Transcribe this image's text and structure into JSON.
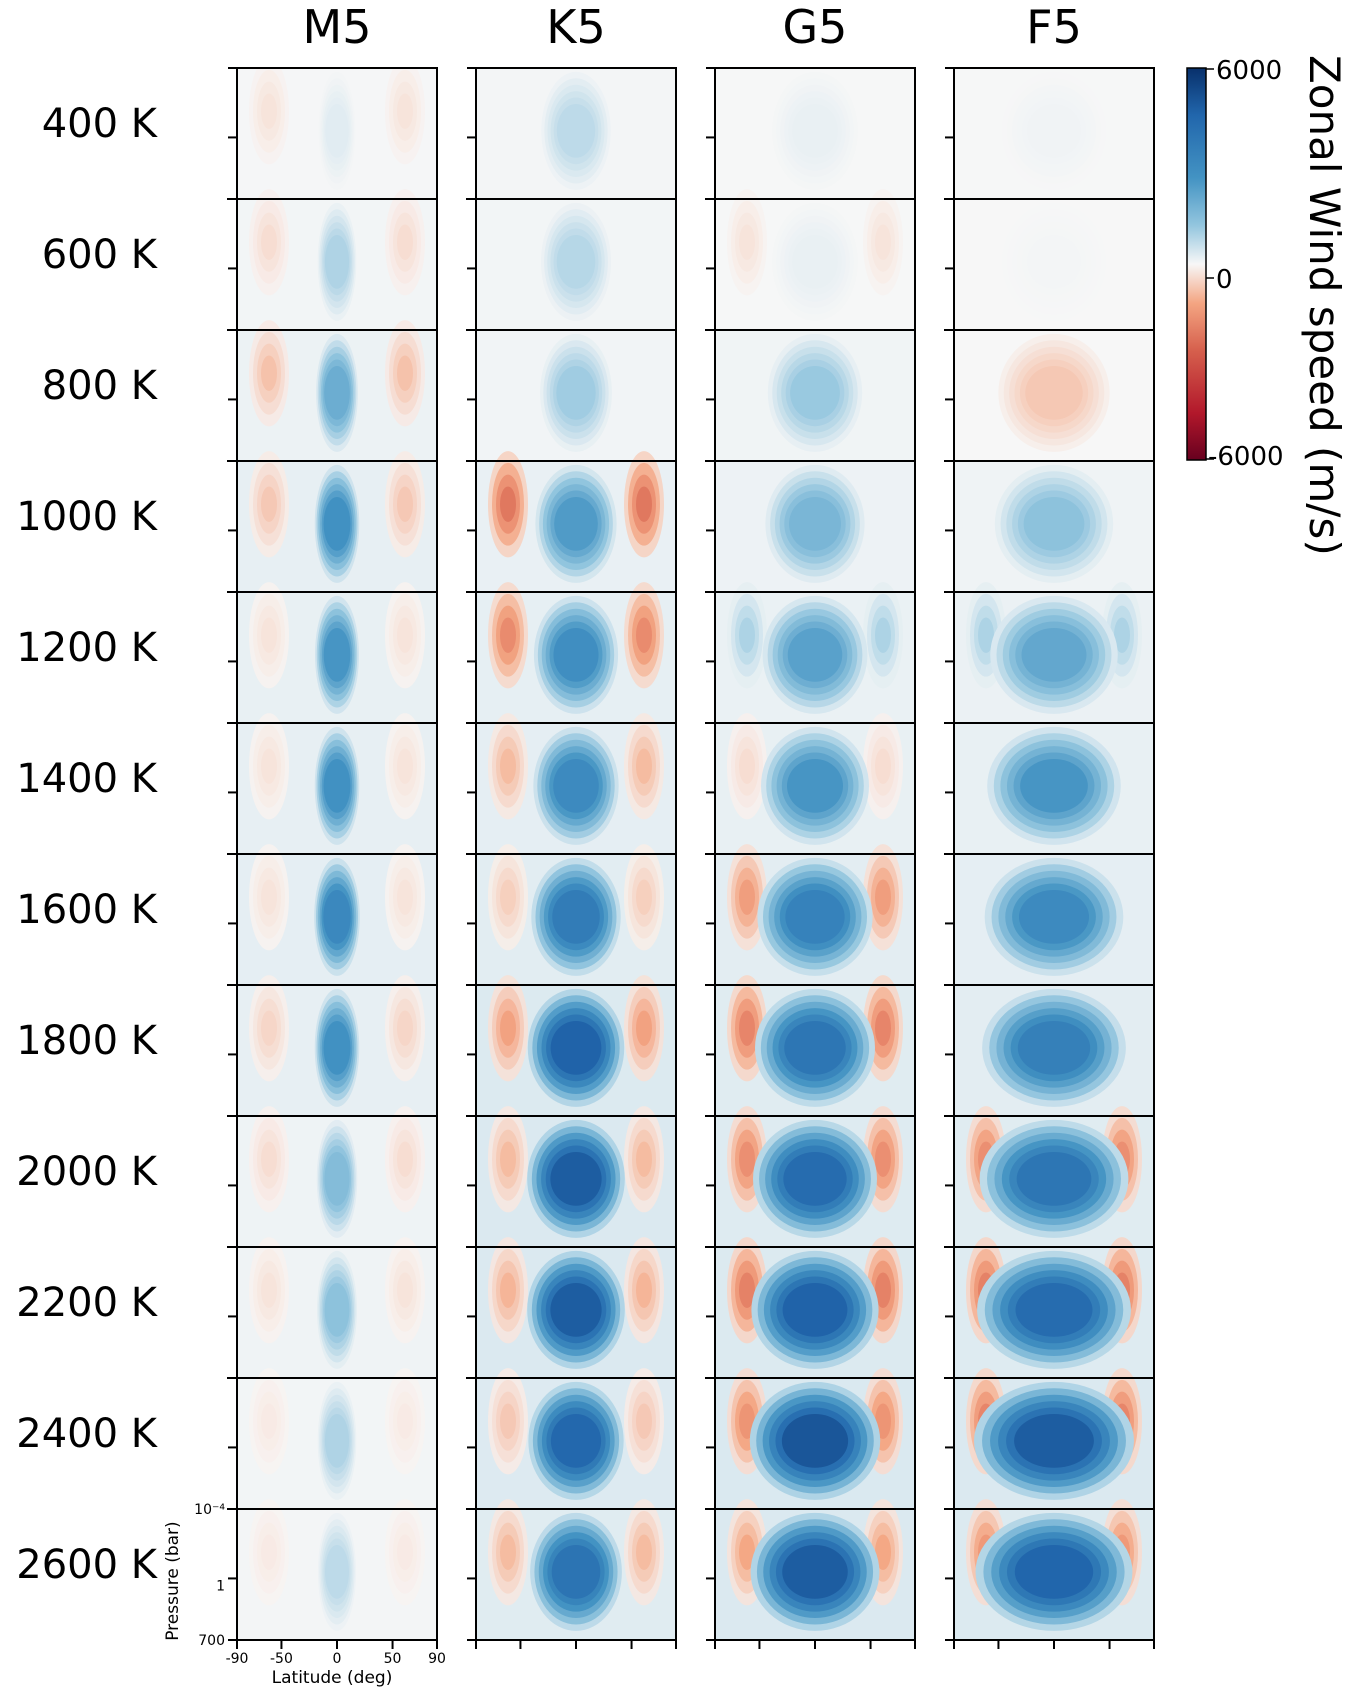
{
  "chart_data": {
    "type": "heatmap",
    "columns": [
      "M5",
      "K5",
      "G5",
      "F5"
    ],
    "rows": [
      "400 K",
      "600 K",
      "800 K",
      "1000 K",
      "1200 K",
      "1400 K",
      "1600 K",
      "1800 K",
      "2000 K",
      "2200 K",
      "2400 K",
      "2600 K"
    ],
    "xlabel": "Latitude (deg)",
    "x_ticks": [
      "-90",
      "-50",
      "0",
      "50",
      "90"
    ],
    "x_tick_values": [
      -90,
      -50,
      0,
      50,
      90
    ],
    "xlim": [
      -90,
      90
    ],
    "ylabel": "Pressure (bar)",
    "y_ticks": [
      "10⁻⁴",
      "1",
      "700"
    ],
    "y_tick_values": [
      0.0001,
      1,
      700
    ],
    "y_scale": "log",
    "colorbar": {
      "label": "Zonal Wind speed (m/s)",
      "ticks": [
        "6000",
        "0",
        "-6000"
      ],
      "tick_values": [
        6000,
        0,
        -6000
      ],
      "range": [
        -6000,
        6000
      ],
      "colormap": "RdBu",
      "colors": {
        "max": "#08306b",
        "zero": "#f7f7f7",
        "min": "#67001f"
      }
    },
    "equatorial_jet_peak_ms": [
      [
        300,
        800,
        200,
        100
      ],
      [
        1000,
        900,
        200,
        50
      ],
      [
        2200,
        1200,
        1300,
        -800
      ],
      [
        3200,
        2800,
        1900,
        1500
      ],
      [
        3000,
        3300,
        2600,
        2400
      ],
      [
        3200,
        3500,
        3000,
        3000
      ],
      [
        3600,
        4200,
        3900,
        3500
      ],
      [
        3200,
        5400,
        4500,
        4000
      ],
      [
        1700,
        5600,
        5000,
        4500
      ],
      [
        1500,
        5600,
        5400,
        5000
      ],
      [
        1000,
        5200,
        5800,
        5600
      ],
      [
        800,
        4600,
        5600,
        5300
      ]
    ],
    "offequatorial_jet_ms": [
      [
        -300,
        0,
        0,
        0
      ],
      [
        -400,
        0,
        -300,
        0
      ],
      [
        -800,
        0,
        0,
        0
      ],
      [
        -700,
        -2200,
        0,
        0
      ],
      [
        -300,
        -1800,
        900,
        900
      ],
      [
        -300,
        -900,
        -400,
        0
      ],
      [
        -300,
        -600,
        -1400,
        0
      ],
      [
        -500,
        -1300,
        -1900,
        0
      ],
      [
        -400,
        -900,
        -1700,
        -1700
      ],
      [
        -300,
        -1000,
        -2000,
        -2000
      ],
      [
        -200,
        -700,
        -1600,
        -1900
      ],
      [
        -200,
        -900,
        -1200,
        -1500
      ]
    ],
    "grid": false
  }
}
